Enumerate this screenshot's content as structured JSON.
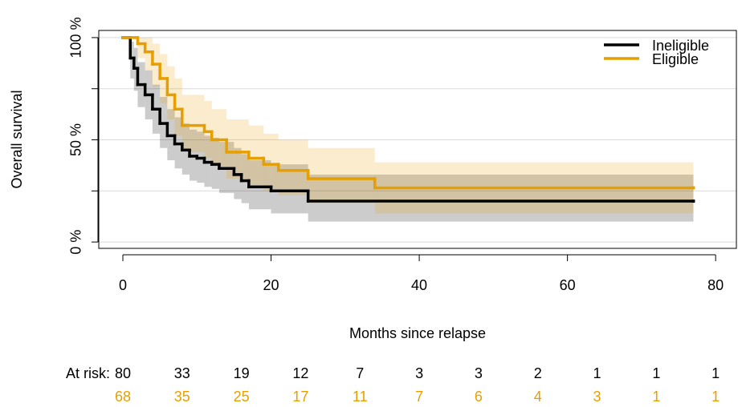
{
  "chart_data": {
    "type": "survival",
    "x_label": "Months since relapse",
    "y_label": "Overall survival",
    "xlim": [
      -3.25,
      82.8
    ],
    "ylim": [
      -3.1,
      103.5
    ],
    "xticks": [
      0,
      20,
      40,
      60,
      80
    ],
    "yticks": [
      {
        "value": 0,
        "label": "0 %"
      },
      {
        "value": 50,
        "label": "50 %"
      },
      {
        "value": 100,
        "label": "100 %"
      }
    ],
    "yticks_minor": [
      25,
      75
    ],
    "grid": true,
    "legend": "topright",
    "risk_label": "At risk:",
    "risk_times": [
      0,
      8,
      16,
      24,
      32,
      40,
      48,
      56,
      64,
      72,
      80
    ],
    "series": [
      {
        "name": "Ineligible",
        "color": "#000000",
        "band_color": "rgba(0,0,0,0.2)",
        "x": [
          0,
          1,
          1.5,
          2,
          3,
          4,
          5,
          6,
          7,
          8,
          9,
          10,
          11,
          12,
          13,
          15,
          16,
          17,
          20,
          25,
          77
        ],
        "values": [
          100,
          90,
          85,
          77,
          72,
          65,
          58,
          52,
          48,
          45,
          42,
          41,
          39,
          38,
          36,
          33,
          30,
          27,
          25,
          20,
          20
        ],
        "lower": [
          100,
          80,
          74,
          66,
          60,
          53,
          46,
          40,
          36,
          33,
          30,
          29,
          27,
          26,
          24,
          21,
          19,
          16,
          14,
          10,
          10
        ],
        "upper": [
          100,
          98,
          95,
          88,
          84,
          77,
          71,
          65,
          61,
          58,
          55,
          54,
          52,
          51,
          49,
          46,
          43,
          40,
          38,
          33,
          30
        ],
        "at_risk": [
          80,
          33,
          19,
          12,
          7,
          3,
          3,
          2,
          1,
          1,
          1
        ]
      },
      {
        "name": "Eligible",
        "color": "#E69F00",
        "band_color": "rgba(230,159,0,0.2)",
        "x": [
          0,
          2,
          3,
          4,
          5,
          6,
          7,
          8,
          11,
          12,
          14,
          17,
          19,
          21,
          25,
          34,
          77
        ],
        "values": [
          100,
          97,
          93,
          87,
          80,
          72,
          65,
          57,
          54,
          50,
          44,
          41,
          38,
          35,
          31,
          26.5,
          26.5
        ],
        "lower": [
          100,
          90,
          84,
          76,
          68,
          60,
          52,
          44,
          41,
          37,
          31,
          28,
          25,
          23,
          19,
          14,
          14
        ],
        "upper": [
          100,
          100,
          100,
          97,
          92,
          86,
          80,
          72,
          69,
          65,
          60,
          57,
          53,
          50,
          46,
          39,
          39
        ],
        "at_risk": [
          68,
          35,
          25,
          17,
          11,
          7,
          6,
          4,
          3,
          1,
          1
        ]
      }
    ]
  }
}
